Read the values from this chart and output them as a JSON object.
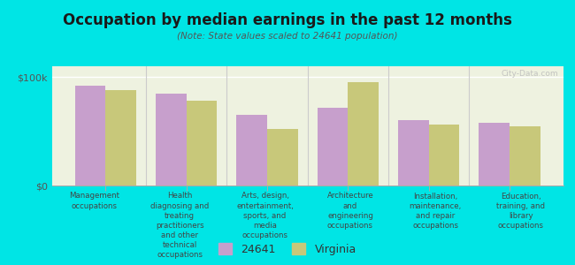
{
  "title": "Occupation by median earnings in the past 12 months",
  "subtitle": "(Note: State values scaled to 24641 population)",
  "background_color": "#00e5e5",
  "plot_bg_color": "#eef2e0",
  "categories": [
    "Management\noccupations",
    "Health\ndiagnosing and\ntreating\npractitioners\nand other\ntechnical\noccupations",
    "Arts, design,\nentertainment,\nsports, and\nmedia\noccupations",
    "Architecture\nand\nengineering\noccupations",
    "Installation,\nmaintenance,\nand repair\noccupations",
    "Education,\ntraining, and\nlibrary\noccupations"
  ],
  "values_24641": [
    92000,
    85000,
    65000,
    72000,
    60000,
    58000
  ],
  "values_virginia": [
    88000,
    78000,
    52000,
    95000,
    56000,
    55000
  ],
  "color_24641": "#c79fcc",
  "color_virginia": "#c8c87a",
  "ylim": [
    0,
    110000
  ],
  "yticks": [
    0,
    100000
  ],
  "ytick_labels": [
    "$0",
    "$100k"
  ],
  "legend_label_24641": "24641",
  "legend_label_virginia": "Virginia",
  "watermark": "City-Data.com"
}
